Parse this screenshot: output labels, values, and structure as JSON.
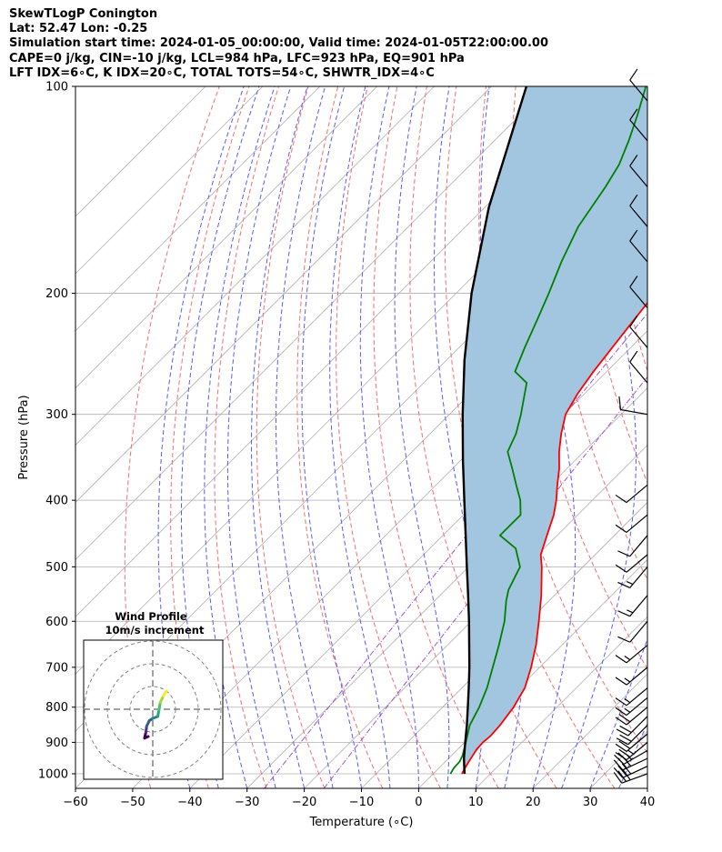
{
  "title_lines": [
    "SkewTLogP Conington",
    "Lat: 52.47   Lon: -0.25",
    "Simulation start time: 2024-01-05_00:00:00, Valid time: 2024-01-05T22:00:00.00",
    "CAPE=0 j/kg, CIN=-10 j/kg, LCL=984 hPa, LFC=923 hPa, EQ=901 hPa",
    "LFT IDX=6∘C, K IDX=20∘C, TOTAL TOTS=54∘C, SHWTR_IDX=4∘C"
  ],
  "chart_data": {
    "type": "line",
    "xlabel": "Temperature (∘C)",
    "ylabel": "Pressure (hPa)",
    "xlim": [
      -60,
      40
    ],
    "ylim": [
      1050,
      100
    ],
    "y_scale": "log",
    "skew_degrees": 45,
    "grid": true,
    "x_ticks": [
      "−60",
      "−50",
      "−40",
      "−30",
      "−20",
      "−10",
      "0",
      "10",
      "20",
      "30",
      "40"
    ],
    "y_ticks": [
      "1000",
      "900",
      "800",
      "700",
      "600",
      "500",
      "400",
      "300",
      "200",
      "100"
    ],
    "temperature": {
      "color": "#ff0000",
      "points": [
        [
          1000,
          5.0
        ],
        [
          970,
          4.3
        ],
        [
          940,
          3.7
        ],
        [
          920,
          3.3
        ],
        [
          900,
          3.2
        ],
        [
          880,
          3.4
        ],
        [
          850,
          3.2
        ],
        [
          800,
          2.4
        ],
        [
          750,
          1.0
        ],
        [
          700,
          -1.5
        ],
        [
          650,
          -4.5
        ],
        [
          600,
          -8.2
        ],
        [
          550,
          -12.3
        ],
        [
          500,
          -17.2
        ],
        [
          480,
          -19.5
        ],
        [
          450,
          -21.8
        ],
        [
          420,
          -24.2
        ],
        [
          400,
          -26.3
        ],
        [
          380,
          -28.8
        ],
        [
          360,
          -31.3
        ],
        [
          340,
          -34.3
        ],
        [
          320,
          -37.1
        ],
        [
          300,
          -39.7
        ],
        [
          280,
          -41.2
        ],
        [
          260,
          -42.3
        ],
        [
          240,
          -43.2
        ],
        [
          220,
          -44.2
        ],
        [
          200,
          -45.2
        ],
        [
          180,
          -47.1
        ],
        [
          160,
          -48.8
        ],
        [
          150,
          -49.6
        ],
        [
          140,
          -50.5
        ],
        [
          130,
          -51.7
        ],
        [
          120,
          -53.4
        ],
        [
          110,
          -55.4
        ],
        [
          100,
          -56.9
        ]
      ]
    },
    "dewpoint": {
      "color": "#008000",
      "points": [
        [
          1000,
          3.0
        ],
        [
          980,
          2.6
        ],
        [
          960,
          2.5
        ],
        [
          940,
          1.9
        ],
        [
          900,
          0.2
        ],
        [
          850,
          -2.1
        ],
        [
          800,
          -3.6
        ],
        [
          750,
          -5.6
        ],
        [
          700,
          -8.2
        ],
        [
          650,
          -11.0
        ],
        [
          600,
          -14.2
        ],
        [
          560,
          -17.5
        ],
        [
          540,
          -19.0
        ],
        [
          500,
          -21.0
        ],
        [
          470,
          -25.0
        ],
        [
          450,
          -30.0
        ],
        [
          420,
          -30.0
        ],
        [
          400,
          -32.6
        ],
        [
          380,
          -36.0
        ],
        [
          360,
          -39.5
        ],
        [
          340,
          -43.3
        ],
        [
          320,
          -45.0
        ],
        [
          300,
          -47.5
        ],
        [
          270,
          -52.0
        ],
        [
          260,
          -56.0
        ],
        [
          240,
          -58.5
        ],
        [
          220,
          -61.0
        ],
        [
          200,
          -63.8
        ],
        [
          180,
          -67.1
        ],
        [
          160,
          -70.3
        ],
        [
          140,
          -72.5
        ],
        [
          130,
          -74.0
        ],
        [
          120,
          -76.5
        ],
        [
          110,
          -79.5
        ],
        [
          100,
          -83.0
        ]
      ]
    },
    "parcel": {
      "color": "#000000",
      "points": [
        [
          1000,
          5.5
        ],
        [
          984,
          4.6
        ],
        [
          950,
          2.7
        ],
        [
          900,
          0.1
        ],
        [
          850,
          -2.6
        ],
        [
          800,
          -5.6
        ],
        [
          750,
          -8.8
        ],
        [
          700,
          -12.3
        ],
        [
          650,
          -16.2
        ],
        [
          600,
          -20.4
        ],
        [
          550,
          -25.1
        ],
        [
          500,
          -30.3
        ],
        [
          450,
          -36.0
        ],
        [
          400,
          -42.4
        ],
        [
          350,
          -49.6
        ],
        [
          300,
          -57.7
        ],
        [
          250,
          -66.9
        ],
        [
          200,
          -77.3
        ],
        [
          150,
          -89.3
        ],
        [
          100,
          -103.9
        ]
      ]
    },
    "cin_fill_color": "#a3c6e0",
    "wind_profile": {
      "title": "Wind Profile",
      "subtitle": "10m/s increment",
      "rings_ms": [
        10,
        20,
        30
      ],
      "hodograph_points_ms": [
        [
          -2,
          -12
        ],
        [
          -3.6,
          -12.7
        ],
        [
          -3,
          -10
        ],
        [
          -2.7,
          -7.5
        ],
        [
          -1.5,
          -5
        ],
        [
          0,
          -4
        ],
        [
          2.2,
          -3.2
        ],
        [
          2.7,
          -0.5
        ],
        [
          3,
          1
        ],
        [
          3.3,
          3
        ],
        [
          4.7,
          5.9
        ],
        [
          6,
          8
        ]
      ]
    },
    "wind_barbs": [
      {
        "p": 1000,
        "speed_kt": 30,
        "dir_deg": 250
      },
      {
        "p": 975,
        "speed_kt": 30,
        "dir_deg": 245
      },
      {
        "p": 950,
        "speed_kt": 30,
        "dir_deg": 245
      },
      {
        "p": 925,
        "speed_kt": 25,
        "dir_deg": 240
      },
      {
        "p": 900,
        "speed_kt": 25,
        "dir_deg": 230
      },
      {
        "p": 875,
        "speed_kt": 20,
        "dir_deg": 230
      },
      {
        "p": 850,
        "speed_kt": 20,
        "dir_deg": 225
      },
      {
        "p": 825,
        "speed_kt": 20,
        "dir_deg": 225
      },
      {
        "p": 800,
        "speed_kt": 20,
        "dir_deg": 230
      },
      {
        "p": 775,
        "speed_kt": 15,
        "dir_deg": 230
      },
      {
        "p": 750,
        "speed_kt": 15,
        "dir_deg": 230
      },
      {
        "p": 700,
        "speed_kt": 15,
        "dir_deg": 230
      },
      {
        "p": 650,
        "speed_kt": 15,
        "dir_deg": 230
      },
      {
        "p": 600,
        "speed_kt": 10,
        "dir_deg": 220
      },
      {
        "p": 550,
        "speed_kt": 15,
        "dir_deg": 220
      },
      {
        "p": 500,
        "speed_kt": 15,
        "dir_deg": 220
      },
      {
        "p": 480,
        "speed_kt": 10,
        "dir_deg": 230
      },
      {
        "p": 450,
        "speed_kt": 10,
        "dir_deg": 220
      },
      {
        "p": 420,
        "speed_kt": 10,
        "dir_deg": 230
      },
      {
        "p": 380,
        "speed_kt": 10,
        "dir_deg": 230
      },
      {
        "p": 300,
        "speed_kt": 10,
        "dir_deg": 280
      },
      {
        "p": 270,
        "speed_kt": 10,
        "dir_deg": 320
      },
      {
        "p": 240,
        "speed_kt": 10,
        "dir_deg": 320
      },
      {
        "p": 210,
        "speed_kt": 10,
        "dir_deg": 320
      },
      {
        "p": 180,
        "speed_kt": 10,
        "dir_deg": 320
      },
      {
        "p": 160,
        "speed_kt": 10,
        "dir_deg": 320
      },
      {
        "p": 140,
        "speed_kt": 10,
        "dir_deg": 320
      },
      {
        "p": 120,
        "speed_kt": 10,
        "dir_deg": 320
      },
      {
        "p": 105,
        "speed_kt": 10,
        "dir_deg": 320
      }
    ]
  }
}
